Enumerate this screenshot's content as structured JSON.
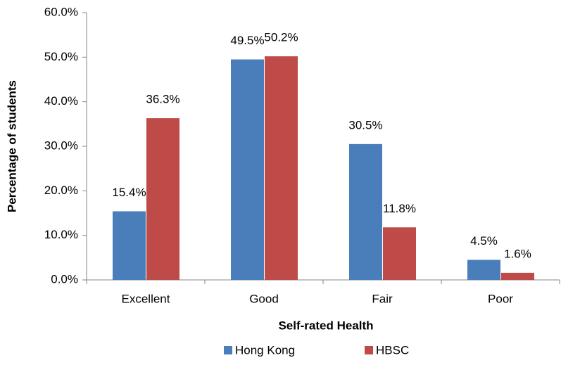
{
  "chart_data": {
    "type": "bar",
    "x_label": "Self-rated Health",
    "y_label": "Percentage of students",
    "categories": [
      "Excellent",
      "Good",
      "Fair",
      "Poor"
    ],
    "series": [
      {
        "name": "Hong Kong",
        "color": "#4a7ebb",
        "values": [
          15.4,
          49.5,
          30.5,
          4.5
        ],
        "value_labels": [
          "15.4%",
          "49.5%",
          "30.5%",
          "4.5%"
        ]
      },
      {
        "name": "HBSC",
        "color": "#be4b48",
        "values": [
          36.3,
          50.2,
          11.8,
          1.6
        ],
        "value_labels": [
          "36.3%",
          "50.2%",
          "11.8%",
          "1.6%"
        ]
      }
    ],
    "ylim": [
      0,
      60
    ],
    "yticks": [
      {
        "value": 0,
        "label": "0.0%"
      },
      {
        "value": 10,
        "label": "10.0%"
      },
      {
        "value": 20,
        "label": "20.0%"
      },
      {
        "value": 30,
        "label": "30.0%"
      },
      {
        "value": 40,
        "label": "40.0%"
      },
      {
        "value": 50,
        "label": "50.0%"
      },
      {
        "value": 60,
        "label": "60.0%"
      }
    ],
    "grid": false,
    "legend": "bottom"
  }
}
